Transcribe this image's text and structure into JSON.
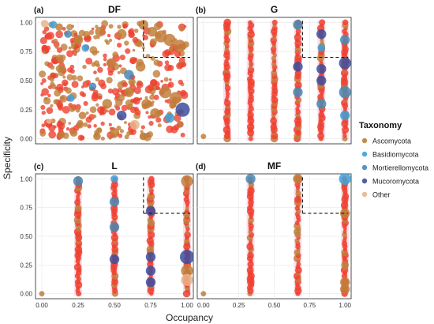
{
  "figure": {
    "xlabel": "Occupancy",
    "ylabel": "Specificity",
    "legend": {
      "title": "Taxonomy",
      "placement": "right",
      "items": [
        {
          "label": "Ascomycota",
          "color": "#c17e3b"
        },
        {
          "label": "Basidiomycota",
          "color": "#3ea0d8"
        },
        {
          "label": "Mortierellomycota",
          "color": "#4a87b5"
        },
        {
          "label": "Mucoromycota",
          "color": "#3d4d9e"
        },
        {
          "label": "Other",
          "color": "#e8b58c"
        }
      ]
    },
    "highlight_color": "#ee4130",
    "threshold_box": "dashed lines at occupancy 0.7 and specificity 0.7"
  },
  "chart_data": [
    {
      "type": "scatter",
      "panel": "(a)",
      "title": "DF",
      "xlim": [
        0,
        1
      ],
      "ylim": [
        0,
        1
      ],
      "grid": true,
      "threshold": {
        "x": 0.7,
        "y": 0.7
      },
      "x_ticks": [],
      "y_ticks": [
        "0.00",
        "0.25",
        "0.50",
        "0.75",
        "1.00"
      ],
      "x_levels": "dense 0.0-1.0 (many sampling units)",
      "points": [
        {
          "x": 0.02,
          "y": 0.99,
          "size": 2,
          "taxon": "Other"
        },
        {
          "x": 0.08,
          "y": 0.98,
          "size": 2,
          "taxon": "Basidiomycota"
        },
        {
          "x": 0.12,
          "y": 0.96,
          "size": 2,
          "taxon": "Ascomycota"
        },
        {
          "x": 0.18,
          "y": 0.9,
          "size": 2,
          "taxon": "Mortierellomycota"
        },
        {
          "x": 0.25,
          "y": 0.85,
          "size": 3,
          "taxon": "Ascomycota"
        },
        {
          "x": 0.3,
          "y": 0.78,
          "size": 2,
          "taxon": "Basidiomycota"
        },
        {
          "x": 0.4,
          "y": 0.92,
          "size": 3,
          "taxon": "Ascomycota"
        },
        {
          "x": 0.48,
          "y": 0.65,
          "size": 3,
          "taxon": "Ascomycota"
        },
        {
          "x": 0.55,
          "y": 0.9,
          "size": 3,
          "taxon": "Ascomycota"
        },
        {
          "x": 0.6,
          "y": 0.55,
          "size": 3,
          "taxon": "Mortierellomycota"
        },
        {
          "x": 0.7,
          "y": 0.98,
          "size": 3,
          "taxon": "Ascomycota"
        },
        {
          "x": 0.76,
          "y": 0.92,
          "size": 3,
          "taxon": "Ascomycota"
        },
        {
          "x": 0.82,
          "y": 0.88,
          "size": 4,
          "taxon": "Ascomycota"
        },
        {
          "x": 0.88,
          "y": 0.85,
          "size": 4,
          "taxon": "Ascomycota"
        },
        {
          "x": 0.95,
          "y": 0.8,
          "size": 4,
          "taxon": "Ascomycota"
        },
        {
          "x": 0.85,
          "y": 0.4,
          "size": 4,
          "taxon": "Ascomycota"
        },
        {
          "x": 0.92,
          "y": 0.35,
          "size": 4,
          "taxon": "Ascomycota"
        },
        {
          "x": 0.97,
          "y": 0.25,
          "size": 5,
          "taxon": "Mucoromycota"
        },
        {
          "x": 0.88,
          "y": 0.18,
          "size": 3,
          "taxon": "Basidiomycota"
        },
        {
          "x": 0.78,
          "y": 0.22,
          "size": 3,
          "taxon": "Ascomycota"
        },
        {
          "x": 0.72,
          "y": 0.3,
          "size": 3,
          "taxon": "Ascomycota"
        },
        {
          "x": 0.64,
          "y": 0.12,
          "size": 3,
          "taxon": "Other"
        },
        {
          "x": 0.55,
          "y": 0.2,
          "size": 3,
          "taxon": "Mucoromycota"
        },
        {
          "x": 0.45,
          "y": 0.3,
          "size": 3,
          "taxon": "Ascomycota"
        },
        {
          "x": 0.35,
          "y": 0.45,
          "size": 2,
          "taxon": "Mortierellomycota"
        },
        {
          "x": 0.28,
          "y": 0.2,
          "size": 2,
          "taxon": "Ascomycota"
        },
        {
          "x": 0.2,
          "y": 0.35,
          "size": 2,
          "taxon": "Basidiomycota"
        },
        {
          "x": 0.14,
          "y": 0.6,
          "size": 2,
          "taxon": "Ascomycota"
        },
        {
          "x": 0.08,
          "y": 0.45,
          "size": 1,
          "taxon": "Ascomycota"
        },
        {
          "x": 0.05,
          "y": 0.15,
          "size": 1,
          "taxon": "Other"
        },
        {
          "x": 0.6,
          "y": 0.4,
          "size": 3,
          "taxon": "Ascomycota"
        },
        {
          "x": 0.68,
          "y": 0.62,
          "size": 3,
          "taxon": "Ascomycota"
        },
        {
          "x": 0.5,
          "y": 0.05,
          "size": 3,
          "taxon": "Ascomycota"
        },
        {
          "x": 0.38,
          "y": 0.02,
          "size": 2,
          "taxon": "Ascomycota"
        },
        {
          "x": 0.22,
          "y": 0.05,
          "size": 2,
          "taxon": "Ascomycota"
        }
      ]
    },
    {
      "type": "scatter",
      "panel": "(b)",
      "title": "G",
      "xlim": [
        0,
        1
      ],
      "ylim": [
        0,
        1
      ],
      "grid": true,
      "threshold": {
        "x": 0.7,
        "y": 0.7
      },
      "x_ticks": [],
      "y_ticks": [],
      "x_levels": [
        0.0,
        0.167,
        0.333,
        0.5,
        0.667,
        0.833,
        1.0
      ],
      "points": [
        {
          "x": 0.0,
          "y": 0.02,
          "size": 1,
          "taxon": "Ascomycota"
        },
        {
          "x": 0.667,
          "y": 0.98,
          "size": 3,
          "taxon": "Mortierellomycota"
        },
        {
          "x": 0.667,
          "y": 0.62,
          "size": 3,
          "taxon": "Mucoromycota"
        },
        {
          "x": 0.667,
          "y": 0.4,
          "size": 3,
          "taxon": "Mortierellomycota"
        },
        {
          "x": 0.833,
          "y": 0.9,
          "size": 3,
          "taxon": "Mucoromycota"
        },
        {
          "x": 0.833,
          "y": 0.78,
          "size": 2,
          "taxon": "Basidiomycota"
        },
        {
          "x": 0.833,
          "y": 0.6,
          "size": 3,
          "taxon": "Mucoromycota"
        },
        {
          "x": 0.833,
          "y": 0.5,
          "size": 3,
          "taxon": "Mucoromycota"
        },
        {
          "x": 0.833,
          "y": 0.3,
          "size": 3,
          "taxon": "Mortierellomycota"
        },
        {
          "x": 1.0,
          "y": 0.85,
          "size": 3,
          "taxon": "Mortierellomycota"
        },
        {
          "x": 1.0,
          "y": 0.65,
          "size": 4,
          "taxon": "Mucoromycota"
        },
        {
          "x": 1.0,
          "y": 0.4,
          "size": 4,
          "taxon": "Mortierellomycota"
        },
        {
          "x": 1.0,
          "y": 0.2,
          "size": 3,
          "taxon": "Basidiomycota"
        }
      ]
    },
    {
      "type": "scatter",
      "panel": "(c)",
      "title": "L",
      "xlim": [
        0,
        1
      ],
      "ylim": [
        0,
        1
      ],
      "grid": true,
      "threshold": {
        "x": 0.7,
        "y": 0.7
      },
      "x_ticks": [
        "0.00",
        "0.25",
        "0.50",
        "0.75",
        "1.00"
      ],
      "y_ticks": [
        "0.00",
        "0.25",
        "0.50",
        "0.75",
        "1.00"
      ],
      "x_levels": [
        0.0,
        0.25,
        0.5,
        0.75,
        1.0
      ],
      "points": [
        {
          "x": 0.0,
          "y": 0.0,
          "size": 1,
          "taxon": "Ascomycota"
        },
        {
          "x": 0.25,
          "y": 0.98,
          "size": 3,
          "taxon": "Mortierellomycota"
        },
        {
          "x": 0.5,
          "y": 1.0,
          "size": 2,
          "taxon": "Basidiomycota"
        },
        {
          "x": 0.5,
          "y": 0.8,
          "size": 3,
          "taxon": "Mortierellomycota"
        },
        {
          "x": 0.5,
          "y": 0.58,
          "size": 3,
          "taxon": "Mortierellomycota"
        },
        {
          "x": 0.5,
          "y": 0.3,
          "size": 3,
          "taxon": "Mucoromycota"
        },
        {
          "x": 0.75,
          "y": 0.72,
          "size": 3,
          "taxon": "Mucoromycota"
        },
        {
          "x": 0.75,
          "y": 0.32,
          "size": 3,
          "taxon": "Mucoromycota"
        },
        {
          "x": 0.75,
          "y": 0.2,
          "size": 3,
          "taxon": "Mucoromycota"
        },
        {
          "x": 0.75,
          "y": 0.1,
          "size": 3,
          "taxon": "Mucoromycota"
        },
        {
          "x": 1.0,
          "y": 0.98,
          "size": 4,
          "taxon": "Ascomycota"
        },
        {
          "x": 1.0,
          "y": 0.32,
          "size": 5,
          "taxon": "Mucoromycota"
        },
        {
          "x": 1.0,
          "y": 0.2,
          "size": 4,
          "taxon": "Ascomycota"
        },
        {
          "x": 1.0,
          "y": 0.12,
          "size": 4,
          "taxon": "Other"
        }
      ]
    },
    {
      "type": "scatter",
      "panel": "(d)",
      "title": "MF",
      "xlim": [
        0,
        1
      ],
      "ylim": [
        0,
        1
      ],
      "grid": true,
      "threshold": {
        "x": 0.7,
        "y": 0.7
      },
      "x_ticks": [
        "0.00",
        "0.25",
        "0.50",
        "0.75",
        "1.00"
      ],
      "y_ticks": [],
      "x_levels": [
        0.0,
        0.333,
        0.667,
        1.0
      ],
      "points": [
        {
          "x": 0.0,
          "y": 0.0,
          "size": 1,
          "taxon": "Ascomycota"
        },
        {
          "x": 0.333,
          "y": 1.0,
          "size": 3,
          "taxon": "Mortierellomycota"
        },
        {
          "x": 0.667,
          "y": 1.0,
          "size": 3,
          "taxon": "Ascomycota"
        },
        {
          "x": 1.0,
          "y": 1.0,
          "size": 4,
          "taxon": "Basidiomycota"
        },
        {
          "x": 1.0,
          "y": 0.7,
          "size": 3,
          "taxon": "Ascomycota"
        },
        {
          "x": 1.0,
          "y": 0.25,
          "size": 2,
          "taxon": "Ascomycota"
        },
        {
          "x": 1.0,
          "y": 0.1,
          "size": 3,
          "taxon": "Ascomycota"
        },
        {
          "x": 1.0,
          "y": 0.04,
          "size": 3,
          "taxon": "Ascomycota"
        }
      ]
    }
  ]
}
